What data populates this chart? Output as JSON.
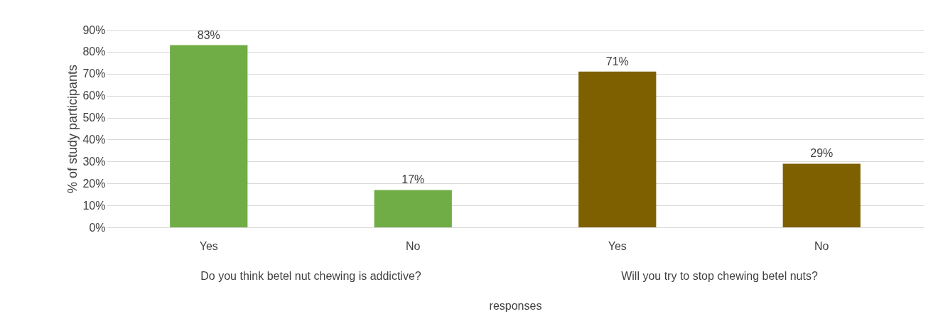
{
  "chart_data": {
    "type": "bar",
    "categories": [
      "Yes",
      "No",
      "Yes",
      "No"
    ],
    "values": [
      83,
      17,
      71,
      29
    ],
    "colors": [
      "#70ad47",
      "#70ad47",
      "#7f6000",
      "#7f6000"
    ],
    "value_labels": [
      "83%",
      "17%",
      "71%",
      "29%"
    ],
    "ylim": [
      0,
      90
    ],
    "yticks": [
      {
        "value": 0,
        "label": "0%"
      },
      {
        "value": 10,
        "label": "10%"
      },
      {
        "value": 20,
        "label": "20%"
      },
      {
        "value": 30,
        "label": "30%"
      },
      {
        "value": 40,
        "label": "40%"
      },
      {
        "value": 50,
        "label": "50%"
      },
      {
        "value": 60,
        "label": "60%"
      },
      {
        "value": 70,
        "label": "70%"
      },
      {
        "value": 80,
        "label": "80%"
      },
      {
        "value": 90,
        "label": "90%"
      }
    ],
    "grid": "y",
    "xlabel": "responses",
    "ylabel": "% of study participants",
    "annotations": [
      "Do you think betel nut chewing is addictive?",
      "Will you try to stop chewing betel nuts?"
    ]
  }
}
